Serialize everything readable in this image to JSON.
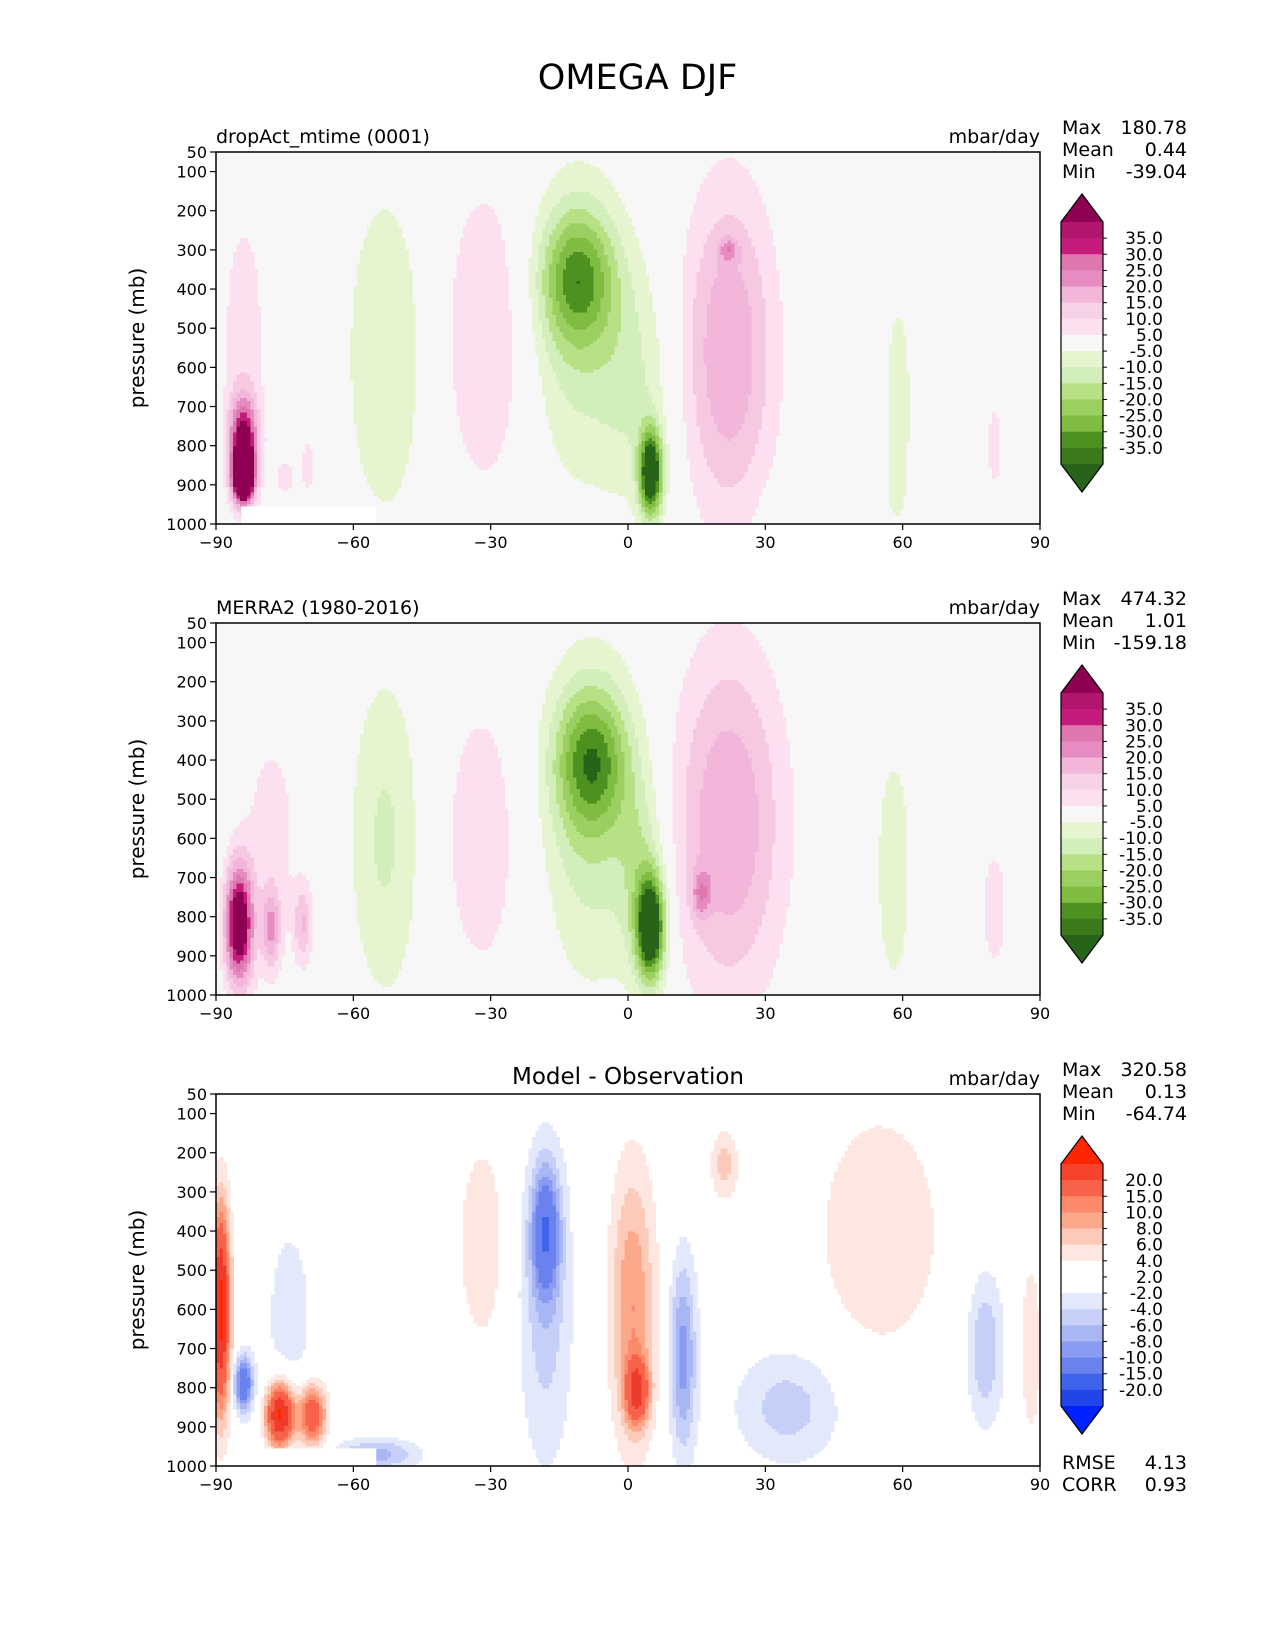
{
  "figure_title": "OMEGA DJF",
  "colors": {
    "background": "#f7f7f7",
    "diff_background": "#ffffff",
    "pos_levels": [
      "#f7f7f7",
      "#fde0ef",
      "#f6c8e1",
      "#f1b6da",
      "#e78cc2",
      "#de77ae",
      "#c51b7d",
      "#8e0152"
    ],
    "neg_levels": [
      "#f7f7f7",
      "#e6f5d0",
      "#d2eebb",
      "#b8e186",
      "#9ccf62",
      "#7fbc41",
      "#4d9221",
      "#276419"
    ],
    "diff_pos_levels": [
      "#ffffff",
      "#fde7e0",
      "#fccab8",
      "#fca88b",
      "#fb8a6a",
      "#f7634a",
      "#ef3b2c",
      "#ff2600"
    ],
    "diff_neg_levels": [
      "#ffffff",
      "#e4e8fb",
      "#c6cff8",
      "#a8b6f4",
      "#8a9cf1",
      "#6a82ee",
      "#3f63ea",
      "#0022ff"
    ]
  },
  "chart_data": [
    {
      "type": "contour",
      "panel": "model",
      "title_left": "dropAct_mtime (0001)",
      "title_center": "",
      "units": "mbar/day",
      "xlabel": "",
      "ylabel": "pressure (mb)",
      "xlim": [
        -90,
        90
      ],
      "ylim": [
        1000,
        50
      ],
      "x_ticks": [
        -90,
        -60,
        -30,
        0,
        30,
        60,
        90
      ],
      "x_tick_labels": [
        "−90",
        "−60",
        "−30",
        "0",
        "30",
        "60",
        "90"
      ],
      "y_ticks": [
        50,
        100,
        200,
        300,
        400,
        500,
        600,
        700,
        800,
        900,
        1000
      ],
      "y_tick_labels": [
        "50",
        "100",
        "200",
        "300",
        "400",
        "500",
        "600",
        "700",
        "800",
        "900",
        "1000"
      ],
      "stats": [
        {
          "label": "Max",
          "value": "180.78"
        },
        {
          "label": "Mean",
          "value": "0.44"
        },
        {
          "label": "Min",
          "value": "-39.04"
        }
      ],
      "colorbar": {
        "labels": [
          "35.0",
          "30.0",
          "25.0",
          "20.0",
          "15.0",
          "10.0",
          "5.0",
          "-5.0",
          "-10.0",
          "-15.0",
          "-20.0",
          "-25.0",
          "-30.0",
          "-35.0"
        ],
        "colors": [
          "#8e0152",
          "#b2156e",
          "#c51b7d",
          "#de77ae",
          "#e78cc2",
          "#f1b6da",
          "#f6d2e8",
          "#fde0ef",
          "#f7f7f7",
          "#e6f5d0",
          "#d2eebb",
          "#b8e186",
          "#9ccf62",
          "#7fbc41",
          "#4d9221",
          "#3a7a1a",
          "#276419"
        ]
      },
      "features": [
        {
          "lon": -84,
          "p": 800,
          "w": 3,
          "h": 120,
          "a": 40
        },
        {
          "lon": -84,
          "p": 880,
          "w": 2,
          "h": 60,
          "a": 60
        },
        {
          "lon": -84,
          "p": 500,
          "w": 6,
          "h": 400,
          "a": 7
        },
        {
          "lon": -70,
          "p": 850,
          "w": 2,
          "h": 100,
          "a": 7
        },
        {
          "lon": -75,
          "p": 880,
          "w": 2,
          "h": 50,
          "a": 8
        },
        {
          "lon": -53,
          "p": 570,
          "w": 9,
          "h": 450,
          "a": -10
        },
        {
          "lon": -31,
          "p": 520,
          "w": 10,
          "h": 420,
          "a": 10
        },
        {
          "lon": -11,
          "p": 370,
          "w": 8,
          "h": 170,
          "a": -24
        },
        {
          "lon": -11,
          "p": 500,
          "w": 11,
          "h": 400,
          "a": -12
        },
        {
          "lon": 2,
          "p": 650,
          "w": 8,
          "h": 300,
          "a": -9
        },
        {
          "lon": 5,
          "p": 870,
          "w": 2.5,
          "h": 110,
          "a": -45
        },
        {
          "lon": 22,
          "p": 560,
          "w": 10,
          "h": 420,
          "a": 20
        },
        {
          "lon": 22,
          "p": 300,
          "w": 2,
          "h": 30,
          "a": 12
        },
        {
          "lon": 59,
          "p": 700,
          "w": 3,
          "h": 300,
          "a": -9
        },
        {
          "lon": 45,
          "p": 950,
          "w": 12,
          "h": 80,
          "a": -5
        },
        {
          "lon": 80,
          "p": 800,
          "w": 2,
          "h": 150,
          "a": 7
        }
      ]
    },
    {
      "type": "contour",
      "panel": "observation",
      "title_left": "MERRA2 (1980-2016)",
      "title_center": "",
      "units": "mbar/day",
      "xlabel": "",
      "ylabel": "pressure (mb)",
      "xlim": [
        -90,
        90
      ],
      "ylim": [
        1000,
        50
      ],
      "x_ticks": [
        -90,
        -60,
        -30,
        0,
        30,
        60,
        90
      ],
      "x_tick_labels": [
        "−90",
        "−60",
        "−30",
        "0",
        "30",
        "60",
        "90"
      ],
      "y_ticks": [
        50,
        100,
        200,
        300,
        400,
        500,
        600,
        700,
        800,
        900,
        1000
      ],
      "y_tick_labels": [
        "50",
        "100",
        "200",
        "300",
        "400",
        "500",
        "600",
        "700",
        "800",
        "900",
        "1000"
      ],
      "stats": [
        {
          "label": "Max",
          "value": "474.32"
        },
        {
          "label": "Mean",
          "value": "1.01"
        },
        {
          "label": "Min",
          "value": "-159.18"
        }
      ],
      "colorbar": {
        "labels": [
          "35.0",
          "30.0",
          "25.0",
          "20.0",
          "15.0",
          "10.0",
          "5.0",
          "-5.0",
          "-10.0",
          "-15.0",
          "-20.0",
          "-25.0",
          "-30.0",
          "-35.0"
        ],
        "colors": [
          "#8e0152",
          "#b2156e",
          "#c51b7d",
          "#de77ae",
          "#e78cc2",
          "#f1b6da",
          "#f6d2e8",
          "#fde0ef",
          "#f7f7f7",
          "#e6f5d0",
          "#d2eebb",
          "#b8e186",
          "#9ccf62",
          "#7fbc41",
          "#4d9221",
          "#3a7a1a",
          "#276419"
        ]
      },
      "features": [
        {
          "lon": -85,
          "p": 820,
          "w": 3,
          "h": 150,
          "a": 45
        },
        {
          "lon": -78,
          "p": 830,
          "w": 2,
          "h": 100,
          "a": 18
        },
        {
          "lon": -71,
          "p": 820,
          "w": 2,
          "h": 100,
          "a": 14
        },
        {
          "lon": -78,
          "p": 600,
          "w": 7,
          "h": 350,
          "a": 7
        },
        {
          "lon": -53,
          "p": 600,
          "w": 8,
          "h": 430,
          "a": -11
        },
        {
          "lon": -32,
          "p": 600,
          "w": 10,
          "h": 420,
          "a": 8
        },
        {
          "lon": -8,
          "p": 400,
          "w": 8,
          "h": 180,
          "a": -25
        },
        {
          "lon": -8,
          "p": 550,
          "w": 11,
          "h": 420,
          "a": -13
        },
        {
          "lon": 5,
          "p": 830,
          "w": 3,
          "h": 130,
          "a": -45
        },
        {
          "lon": 3,
          "p": 700,
          "w": 5,
          "h": 250,
          "a": -12
        },
        {
          "lon": 22,
          "p": 560,
          "w": 12,
          "h": 440,
          "a": 20
        },
        {
          "lon": 16,
          "p": 740,
          "w": 2,
          "h": 60,
          "a": 14
        },
        {
          "lon": 58,
          "p": 680,
          "w": 4,
          "h": 330,
          "a": -9
        },
        {
          "lon": 80,
          "p": 780,
          "w": 2.5,
          "h": 150,
          "a": 10
        }
      ]
    },
    {
      "type": "contour",
      "panel": "difference",
      "title_left": "",
      "title_center": "Model - Observation",
      "units": "mbar/day",
      "xlabel": "",
      "ylabel": "pressure (mb)",
      "xlim": [
        -90,
        90
      ],
      "ylim": [
        1000,
        50
      ],
      "x_ticks": [
        -90,
        -60,
        -30,
        0,
        30,
        60,
        90
      ],
      "x_tick_labels": [
        "−90",
        "−60",
        "−30",
        "0",
        "30",
        "60",
        "90"
      ],
      "y_ticks": [
        50,
        100,
        200,
        300,
        400,
        500,
        600,
        700,
        800,
        900,
        1000
      ],
      "y_tick_labels": [
        "50",
        "100",
        "200",
        "300",
        "400",
        "500",
        "600",
        "700",
        "800",
        "900",
        "1000"
      ],
      "stats": [
        {
          "label": "Max",
          "value": "320.58"
        },
        {
          "label": "Mean",
          "value": "0.13"
        },
        {
          "label": "Min",
          "value": "-64.74"
        }
      ],
      "extra_stats": [
        {
          "label": "RMSE",
          "value": "4.13"
        },
        {
          "label": "CORR",
          "value": "0.93"
        }
      ],
      "colorbar": {
        "labels": [
          "20.0",
          "15.0",
          "10.0",
          "8.0",
          "6.0",
          "4.0",
          "2.0",
          "-2.0",
          "-4.0",
          "-6.0",
          "-8.0",
          "-10.0",
          "-15.0",
          "-20.0"
        ],
        "colors": [
          "#ff2600",
          "#f5432c",
          "#f7634a",
          "#fb8a6a",
          "#fca88b",
          "#fccab8",
          "#fde7e0",
          "#ffffff",
          "#ffffff",
          "#e4e8fb",
          "#c6cff8",
          "#a8b6f4",
          "#8a9cf1",
          "#6a82ee",
          "#3f63ea",
          "#2145e8",
          "#0022ff"
        ]
      },
      "features": [
        {
          "lon": -89,
          "p": 600,
          "w": 2,
          "h": 250,
          "a": 22
        },
        {
          "lon": -76,
          "p": 870,
          "w": 3,
          "h": 80,
          "a": 22
        },
        {
          "lon": -69,
          "p": 870,
          "w": 3,
          "h": 80,
          "a": 14
        },
        {
          "lon": -84,
          "p": 790,
          "w": 2,
          "h": 70,
          "a": -14
        },
        {
          "lon": -74,
          "p": 620,
          "w": 6,
          "h": 300,
          "a": -3
        },
        {
          "lon": -55,
          "p": 970,
          "w": 9,
          "h": 40,
          "a": -7
        },
        {
          "lon": -32,
          "p": 430,
          "w": 5,
          "h": 260,
          "a": 4
        },
        {
          "lon": -18,
          "p": 400,
          "w": 3,
          "h": 160,
          "a": -12
        },
        {
          "lon": -18,
          "p": 600,
          "w": 6,
          "h": 420,
          "a": -5
        },
        {
          "lon": 1,
          "p": 590,
          "w": 5,
          "h": 360,
          "a": 8
        },
        {
          "lon": 2,
          "p": 810,
          "w": 2.5,
          "h": 80,
          "a": 14
        },
        {
          "lon": 12,
          "p": 720,
          "w": 3,
          "h": 250,
          "a": -9
        },
        {
          "lon": 21,
          "p": 230,
          "w": 3,
          "h": 90,
          "a": 5
        },
        {
          "lon": 35,
          "p": 850,
          "w": 12,
          "h": 150,
          "a": -5
        },
        {
          "lon": 55,
          "p": 400,
          "w": 14,
          "h": 320,
          "a": 4
        },
        {
          "lon": 78,
          "p": 700,
          "w": 4,
          "h": 200,
          "a": -6
        },
        {
          "lon": 88,
          "p": 700,
          "w": 3,
          "h": 300,
          "a": 3
        }
      ]
    }
  ]
}
